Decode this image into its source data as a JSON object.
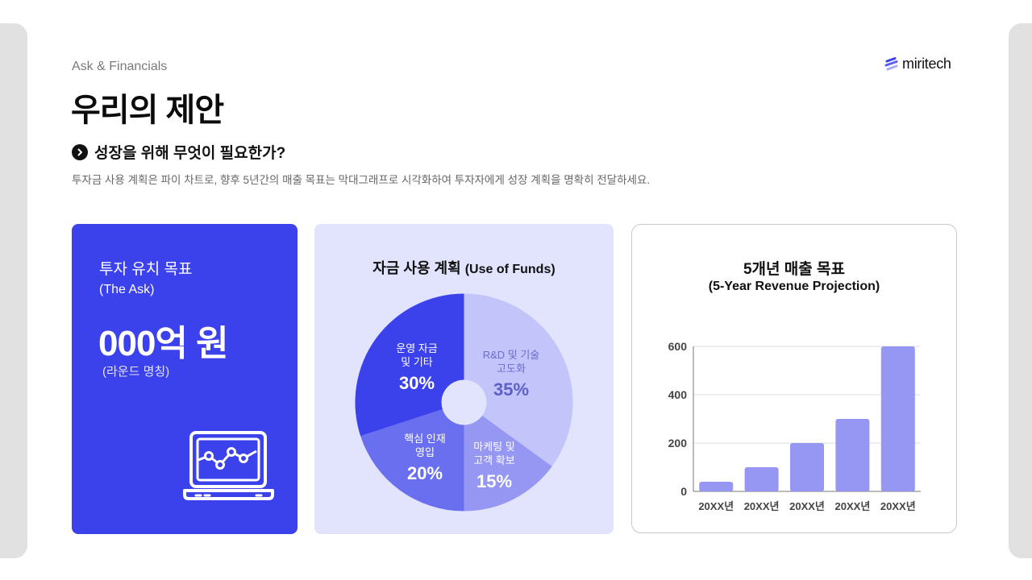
{
  "header": {
    "kicker": "Ask & Financials",
    "title": "우리의 제안",
    "logo_text": "miritech",
    "question": "성장을 위해 무엇이 필요한가?",
    "description": "투자금 사용 계획은 파이 차트로, 향후 5년간의 매출 목표는 막대그래프로 시각화하여 투자자에게 성장 계획을 명확히 전달하세요."
  },
  "ask_card": {
    "title": "투자 유치 목표",
    "subtitle": "(The Ask)",
    "amount": "000억 원",
    "note": "(라운드 명칭)",
    "icon": "laptop-chart-icon",
    "background": "#3b42eb"
  },
  "funds_card": {
    "title_ko": "자금 사용 계획",
    "title_en": "(Use of Funds)"
  },
  "revenue_card": {
    "title": "5개년 매출 목표",
    "subtitle": "(5-Year Revenue Projection)"
  },
  "chart_data": [
    {
      "type": "pie",
      "title": "자금 사용 계획 (Use of Funds)",
      "categories": [
        "R&D 및 기술 고도화",
        "마케팅 및 고객 확보",
        "핵심 인재 영입",
        "운영 자금 및 기타"
      ],
      "labels": [
        {
          "line1": "R&D 및 기술",
          "line2": "고도화",
          "pct": "35%"
        },
        {
          "line1": "마케팅 및",
          "line2": "고객 확보",
          "pct": "15%"
        },
        {
          "line1": "핵심 인재",
          "line2": "영입",
          "pct": "20%"
        },
        {
          "line1": "운영 자금",
          "line2": "및 기타",
          "pct": "30%"
        }
      ],
      "values": [
        35,
        15,
        20,
        30
      ],
      "colors": [
        "#c3c4fa",
        "#9597f3",
        "#6a6ff0",
        "#3b42eb"
      ],
      "donut_hole": true,
      "legend": "none"
    },
    {
      "type": "bar",
      "title": "5개년 매출 목표 (5-Year Revenue Projection)",
      "categories": [
        "20XX년",
        "20XX년",
        "20XX년",
        "20XX년",
        "20XX년"
      ],
      "values": [
        40,
        100,
        200,
        300,
        600
      ],
      "xlabel": "",
      "ylabel": "",
      "ylim": [
        0,
        600
      ],
      "yticks": [
        "0",
        "200",
        "400",
        "600"
      ],
      "grid": true,
      "bar_color": "#9597f3"
    }
  ]
}
